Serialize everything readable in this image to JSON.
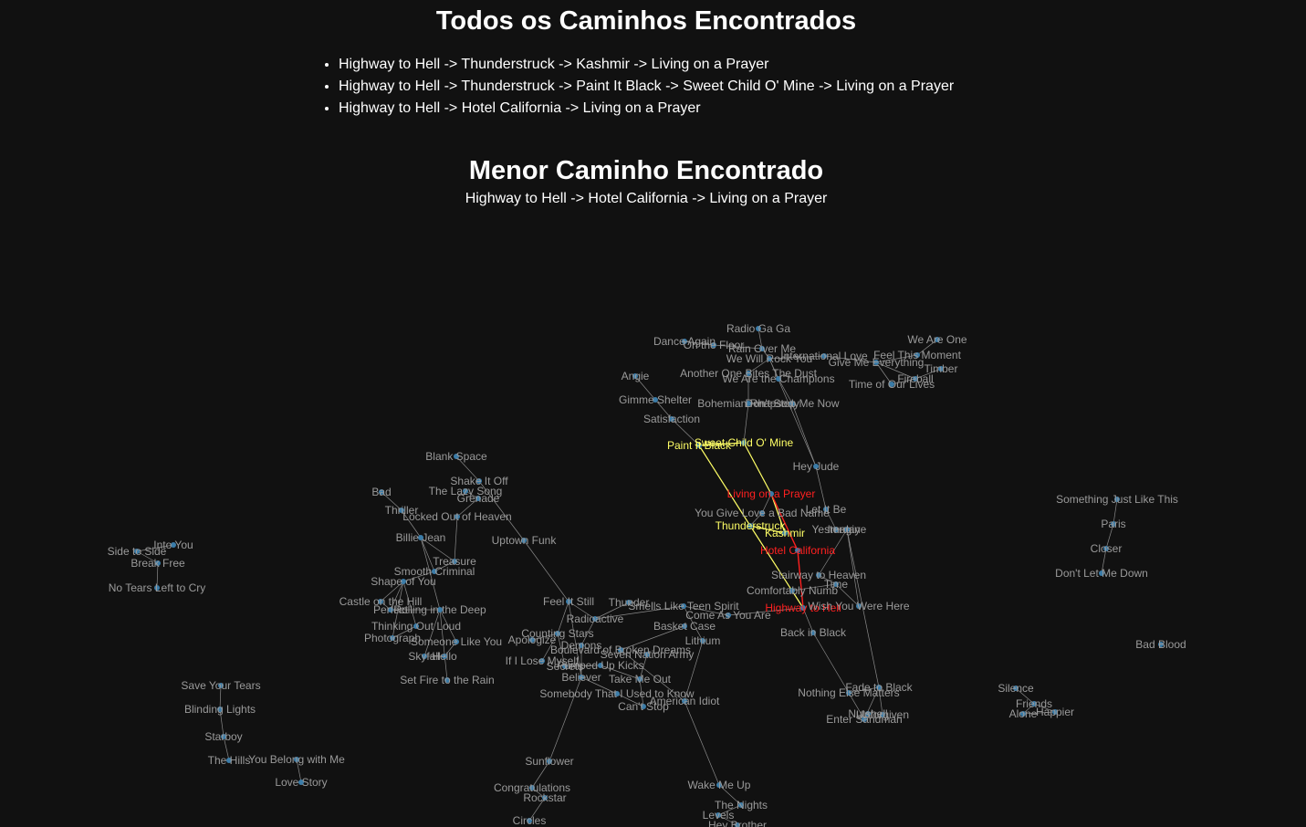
{
  "heading_all": "Todos os Caminhos Encontrados",
  "all_paths": [
    "Highway to Hell -> Thunderstruck -> Kashmir -> Living on a Prayer",
    "Highway to Hell -> Thunderstruck -> Paint It Black -> Sweet Child O' Mine -> Living on a Prayer",
    "Highway to Hell -> Hotel California -> Living on a Prayer"
  ],
  "heading_shortest": "Menor Caminho Encontrado",
  "shortest_path": "Highway to Hell -> Hotel California -> Living on a Prayer",
  "colors": {
    "background": "#111111",
    "node": "#3b7ca8",
    "edge": "#8a8a8a",
    "label": "#9a9a9a",
    "path_edge": "#ffff66",
    "path_label": "#ffff66",
    "shortest_edge": "#ff2020",
    "shortest_label": "#ff2020"
  },
  "graph": {
    "nodes": [
      {
        "id": "Radio Ga Ga"
      },
      {
        "id": "Dance Again"
      },
      {
        "id": "On the Floor"
      },
      {
        "id": "Rain Over Me"
      },
      {
        "id": "We Will Rock You"
      },
      {
        "id": "International Love"
      },
      {
        "id": "Give Me Everything"
      },
      {
        "id": "Feel This Moment"
      },
      {
        "id": "We Are One"
      },
      {
        "id": "Timber"
      },
      {
        "id": "Fireball"
      },
      {
        "id": "Time of Our Lives"
      },
      {
        "id": "Angie"
      },
      {
        "id": "Another One Bites The Dust"
      },
      {
        "id": "We Are the Champions"
      },
      {
        "id": "Gimme Shelter"
      },
      {
        "id": "Bohemian Rhapsody"
      },
      {
        "id": "Don't Stop Me Now"
      },
      {
        "id": "Satisfaction"
      },
      {
        "id": "Paint It Black",
        "role": "path"
      },
      {
        "id": "Sweet Child O' Mine",
        "role": "path"
      },
      {
        "id": "Hey Jude"
      },
      {
        "id": "Living on a Prayer",
        "role": "shortest"
      },
      {
        "id": "You Give Love a Bad Name"
      },
      {
        "id": "Let It Be"
      },
      {
        "id": "Thunderstruck",
        "role": "path"
      },
      {
        "id": "Kashmir",
        "role": "path"
      },
      {
        "id": "Yesterday"
      },
      {
        "id": "Imagine"
      },
      {
        "id": "Hotel California",
        "role": "shortest"
      },
      {
        "id": "Stairway to Heaven"
      },
      {
        "id": "Time"
      },
      {
        "id": "Comfortably Numb"
      },
      {
        "id": "Highway to Hell",
        "role": "shortest"
      },
      {
        "id": "Wish You Were Here"
      },
      {
        "id": "Back in Black"
      },
      {
        "id": "Nothing Else Matters"
      },
      {
        "id": "Fade to Black"
      },
      {
        "id": "Enter Sandman"
      },
      {
        "id": "Nutshell"
      },
      {
        "id": "Unforgiven"
      },
      {
        "id": "Blank Space"
      },
      {
        "id": "Shake It Off"
      },
      {
        "id": "The Lazy Song"
      },
      {
        "id": "Grenade"
      },
      {
        "id": "Locked Out of Heaven"
      },
      {
        "id": "Bad"
      },
      {
        "id": "Thriller"
      },
      {
        "id": "Billie Jean"
      },
      {
        "id": "Uptown Funk"
      },
      {
        "id": "Treasure"
      },
      {
        "id": "Smooth Criminal"
      },
      {
        "id": "Shape of You"
      },
      {
        "id": "Castle on the Hill"
      },
      {
        "id": "Perfect"
      },
      {
        "id": "Rolling in the Deep"
      },
      {
        "id": "Thinking Out Loud"
      },
      {
        "id": "Photograph"
      },
      {
        "id": "Someone Like You"
      },
      {
        "id": "Skyfall"
      },
      {
        "id": "Hello"
      },
      {
        "id": "Set Fire to the Rain"
      },
      {
        "id": "Feel It Still"
      },
      {
        "id": "Thunder"
      },
      {
        "id": "Radioactive"
      },
      {
        "id": "Smells Like Teen Spirit"
      },
      {
        "id": "Come As You Are"
      },
      {
        "id": "Basket Case"
      },
      {
        "id": "Lithium"
      },
      {
        "id": "Counting Stars"
      },
      {
        "id": "Apologize"
      },
      {
        "id": "Demons"
      },
      {
        "id": "Boulevard of Broken Dreams"
      },
      {
        "id": "Seven Nation Army"
      },
      {
        "id": "If I Lose Myself"
      },
      {
        "id": "Secrets"
      },
      {
        "id": "Pumped Up Kicks"
      },
      {
        "id": "Believer"
      },
      {
        "id": "Take Me Out"
      },
      {
        "id": "Somebody That I Used to Know"
      },
      {
        "id": "Can't Stop"
      },
      {
        "id": "American Idiot"
      },
      {
        "id": "Sunflower"
      },
      {
        "id": "Congratulations"
      },
      {
        "id": "Rockstar"
      },
      {
        "id": "Circles"
      },
      {
        "id": "Wake Me Up"
      },
      {
        "id": "The Nights"
      },
      {
        "id": "Levels"
      },
      {
        "id": "Hey Brother"
      },
      {
        "id": "Side to Side"
      },
      {
        "id": "Into You"
      },
      {
        "id": "Break Free"
      },
      {
        "id": "No Tears Left to Cry"
      },
      {
        "id": "Save Your Tears"
      },
      {
        "id": "Blinding Lights"
      },
      {
        "id": "Starboy"
      },
      {
        "id": "The Hills"
      },
      {
        "id": "You Belong with Me"
      },
      {
        "id": "Love Story"
      },
      {
        "id": "Something Just Like This"
      },
      {
        "id": "Paris"
      },
      {
        "id": "Closer"
      },
      {
        "id": "Don't Let Me Down"
      },
      {
        "id": "Bad Blood"
      },
      {
        "id": "Silence"
      },
      {
        "id": "Friends"
      },
      {
        "id": "Alone"
      },
      {
        "id": "Happier"
      }
    ],
    "edges": [
      [
        "Radio Ga Ga",
        "Rain Over Me"
      ],
      [
        "Dance Again",
        "On the Floor"
      ],
      [
        "On the Floor",
        "Rain Over Me"
      ],
      [
        "Rain Over Me",
        "We Will Rock You"
      ],
      [
        "We Will Rock You",
        "International Love"
      ],
      [
        "International Love",
        "Give Me Everything"
      ],
      [
        "Give Me Everything",
        "Feel This Moment"
      ],
      [
        "Feel This Moment",
        "We Are One"
      ],
      [
        "Give Me Everything",
        "Fireball"
      ],
      [
        "Fireball",
        "Timber"
      ],
      [
        "Fireball",
        "Time of Our Lives"
      ],
      [
        "Give Me Everything",
        "Time of Our Lives"
      ],
      [
        "We Will Rock You",
        "Another One Bites The Dust"
      ],
      [
        "We Will Rock You",
        "We Are the Champions"
      ],
      [
        "Another One Bites The Dust",
        "Bohemian Rhapsody"
      ],
      [
        "We Are the Champions",
        "Don't Stop Me Now"
      ],
      [
        "Bohemian Rhapsody",
        "Don't Stop Me Now"
      ],
      [
        "Angie",
        "Gimme Shelter"
      ],
      [
        "Gimme Shelter",
        "Satisfaction"
      ],
      [
        "Satisfaction",
        "Paint It Black"
      ],
      [
        "Bohemian Rhapsody",
        "Sweet Child O' Mine"
      ],
      [
        "Don't Stop Me Now",
        "Hey Jude"
      ],
      [
        "We Will Rock You",
        "Hey Jude"
      ],
      [
        "Hey Jude",
        "Let It Be"
      ],
      [
        "Let It Be",
        "Yesterday"
      ],
      [
        "Yesterday",
        "Imagine"
      ],
      [
        "Imagine",
        "Stairway to Heaven"
      ],
      [
        "Imagine",
        "Wish You Were Here"
      ],
      [
        "Living on a Prayer",
        "You Give Love a Bad Name"
      ],
      [
        "You Give Love a Bad Name",
        "Thunderstruck"
      ],
      [
        "Stairway to Heaven",
        "Time"
      ],
      [
        "Time",
        "Comfortably Numb"
      ],
      [
        "Time",
        "Wish You Were Here"
      ],
      [
        "Comfortably Numb",
        "Highway to Hell"
      ],
      [
        "Highway to Hell",
        "Back in Black"
      ],
      [
        "Back in Black",
        "Nothing Else Matters"
      ],
      [
        "Nothing Else Matters",
        "Fade to Black"
      ],
      [
        "Fade to Black",
        "Enter Sandman"
      ],
      [
        "Fade to Black",
        "Unforgiven"
      ],
      [
        "Nothing Else Matters",
        "Enter Sandman"
      ],
      [
        "Imagine",
        "Fade to Black"
      ],
      [
        "Blank Space",
        "Shake It Off"
      ],
      [
        "Shake It Off",
        "Uptown Funk"
      ],
      [
        "The Lazy Song",
        "Grenade"
      ],
      [
        "Grenade",
        "Locked Out of Heaven"
      ],
      [
        "Locked Out of Heaven",
        "Treasure"
      ],
      [
        "Bad",
        "Thriller"
      ],
      [
        "Thriller",
        "Billie Jean"
      ],
      [
        "Billie Jean",
        "Smooth Criminal"
      ],
      [
        "Billie Jean",
        "Treasure"
      ],
      [
        "Treasure",
        "Smooth Criminal"
      ],
      [
        "Smooth Criminal",
        "Shape of You"
      ],
      [
        "Shape of You",
        "Castle on the Hill"
      ],
      [
        "Shape of You",
        "Perfect"
      ],
      [
        "Shape of You",
        "Photograph"
      ],
      [
        "Shape of You",
        "Thinking Out Loud"
      ],
      [
        "Castle on the Hill",
        "Perfect"
      ],
      [
        "Perfect",
        "Rolling in the Deep"
      ],
      [
        "Rolling in the Deep",
        "Someone Like You"
      ],
      [
        "Rolling in the Deep",
        "Skyfall"
      ],
      [
        "Rolling in the Deep",
        "Set Fire to the Rain"
      ],
      [
        "Someone Like You",
        "Hello"
      ],
      [
        "Skyfall",
        "Hello"
      ],
      [
        "Thinking Out Loud",
        "Photograph"
      ],
      [
        "Billie Jean",
        "Rolling in the Deep"
      ],
      [
        "Uptown Funk",
        "Feel It Still"
      ],
      [
        "Feel It Still",
        "Radioactive"
      ],
      [
        "Feel It Still",
        "Counting Stars"
      ],
      [
        "Feel It Still",
        "Believer"
      ],
      [
        "Thunder",
        "Radioactive"
      ],
      [
        "Radioactive",
        "Demons"
      ],
      [
        "Radioactive",
        "Smells Like Teen Spirit"
      ],
      [
        "Smells Like Teen Spirit",
        "Come As You Are"
      ],
      [
        "Smells Like Teen Spirit",
        "Lithium"
      ],
      [
        "Come As You Are",
        "Highway to Hell"
      ],
      [
        "Basket Case",
        "Boulevard of Broken Dreams"
      ],
      [
        "Boulevard of Broken Dreams",
        "American Idiot"
      ],
      [
        "Counting Stars",
        "Apologize"
      ],
      [
        "Counting Stars",
        "If I Lose Myself"
      ],
      [
        "Counting Stars",
        "Secrets"
      ],
      [
        "Demons",
        "Believer"
      ],
      [
        "Pumped Up Kicks",
        "Take Me Out"
      ],
      [
        "Seven Nation Army",
        "Take Me Out"
      ],
      [
        "Take Me Out",
        "Can't Stop"
      ],
      [
        "Somebody That I Used to Know",
        "Can't Stop"
      ],
      [
        "Lithium",
        "American Idiot"
      ],
      [
        "American Idiot",
        "Wake Me Up"
      ],
      [
        "Wake Me Up",
        "The Nights"
      ],
      [
        "The Nights",
        "Levels"
      ],
      [
        "Levels",
        "Hey Brother"
      ],
      [
        "Believer",
        "Sunflower"
      ],
      [
        "Sunflower",
        "Congratulations"
      ],
      [
        "Congratulations",
        "Rockstar"
      ],
      [
        "Rockstar",
        "Circles"
      ],
      [
        "Side to Side",
        "Into You"
      ],
      [
        "Side to Side",
        "Break Free"
      ],
      [
        "Break Free",
        "No Tears Left to Cry"
      ],
      [
        "Save Your Tears",
        "Blinding Lights"
      ],
      [
        "Blinding Lights",
        "Starboy"
      ],
      [
        "Starboy",
        "The Hills"
      ],
      [
        "You Belong with Me",
        "Love Story"
      ],
      [
        "Something Just Like This",
        "Paris"
      ],
      [
        "Paris",
        "Closer"
      ],
      [
        "Closer",
        "Don't Let Me Down"
      ],
      [
        "Silence",
        "Friends"
      ],
      [
        "Friends",
        "Alone"
      ],
      [
        "Friends",
        "Happier"
      ],
      [
        "Alone",
        "Happier"
      ],
      [
        "Secrets",
        "Pumped Up Kicks"
      ],
      [
        "Believer",
        "Somebody That I Used to Know"
      ]
    ],
    "path_edges": [
      [
        "Highway to Hell",
        "Thunderstruck"
      ],
      [
        "Thunderstruck",
        "Kashmir"
      ],
      [
        "Kashmir",
        "Living on a Prayer"
      ],
      [
        "Thunderstruck",
        "Paint It Black"
      ],
      [
        "Paint It Black",
        "Sweet Child O' Mine"
      ],
      [
        "Sweet Child O' Mine",
        "Living on a Prayer"
      ]
    ],
    "shortest_edges": [
      [
        "Highway to Hell",
        "Hotel California"
      ],
      [
        "Hotel California",
        "Living on a Prayer"
      ]
    ]
  }
}
